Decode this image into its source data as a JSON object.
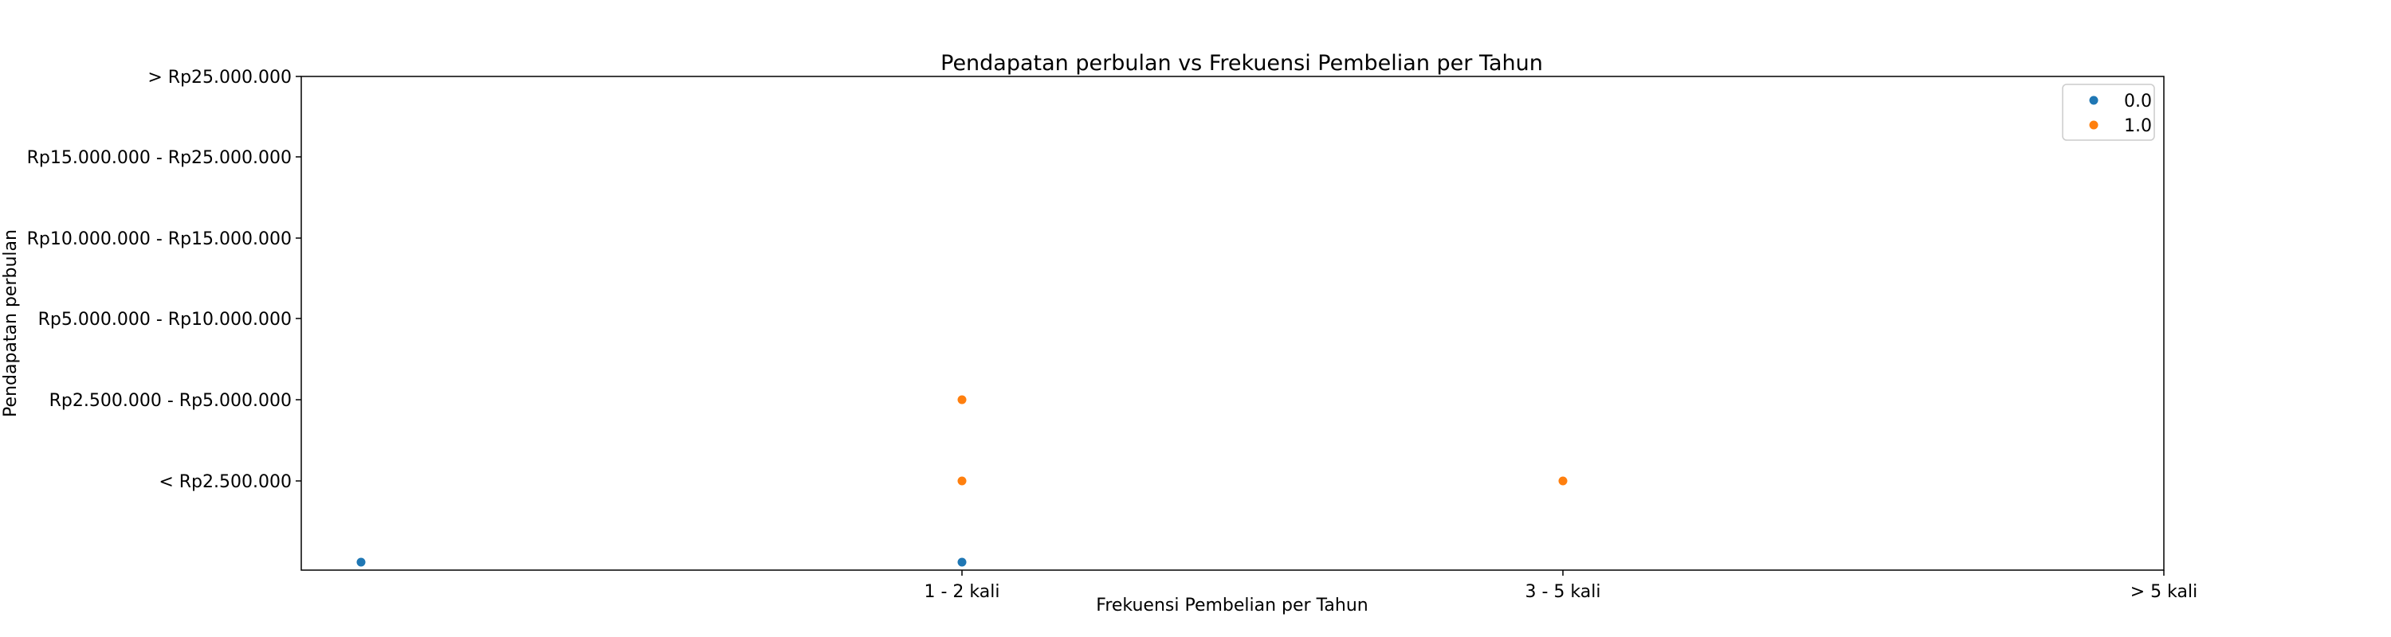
{
  "chart_data": {
    "type": "scatter",
    "title": "Pendapatan perbulan vs Frekuensi Pembelian per Tahun",
    "xlabel": "Frekuensi Pembelian per Tahun",
    "ylabel": "Pendapatan perbulan",
    "x_categories": [
      "",
      "1 - 2 kali",
      "3 - 5 kali",
      "> 5 kali"
    ],
    "y_categories": [
      "",
      "< Rp2.500.000",
      "Rp2.500.000 - Rp5.000.000",
      "Rp5.000.000 - Rp10.000.000",
      "Rp10.000.000 - Rp15.000.000",
      "Rp15.000.000 - Rp25.000.000",
      "> Rp25.000.000"
    ],
    "x_tick_labels": [
      "1 - 2 kali",
      "3 - 5 kali",
      "> 5 kali"
    ],
    "y_tick_labels": [
      "< Rp2.500.000",
      "Rp2.500.000 - Rp5.000.000",
      "Rp5.000.000 - Rp10.000.000",
      "Rp10.000.000 - Rp15.000.000",
      "Rp15.000.000 - Rp25.000.000",
      "> Rp25.000.000"
    ],
    "grid": false,
    "legend_position": "top-right",
    "series": [
      {
        "name": "0.0",
        "color": "#1f77b4",
        "points": [
          {
            "x": "",
            "y": ""
          },
          {
            "x": "1 - 2 kali",
            "y": ""
          }
        ]
      },
      {
        "name": "1.0",
        "color": "#ff7f0e",
        "points": [
          {
            "x": "1 - 2 kali",
            "y": "Rp2.500.000 - Rp5.000.000"
          },
          {
            "x": "1 - 2 kali",
            "y": "< Rp2.500.000"
          },
          {
            "x": "3 - 5 kali",
            "y": "< Rp2.500.000"
          }
        ]
      }
    ]
  }
}
